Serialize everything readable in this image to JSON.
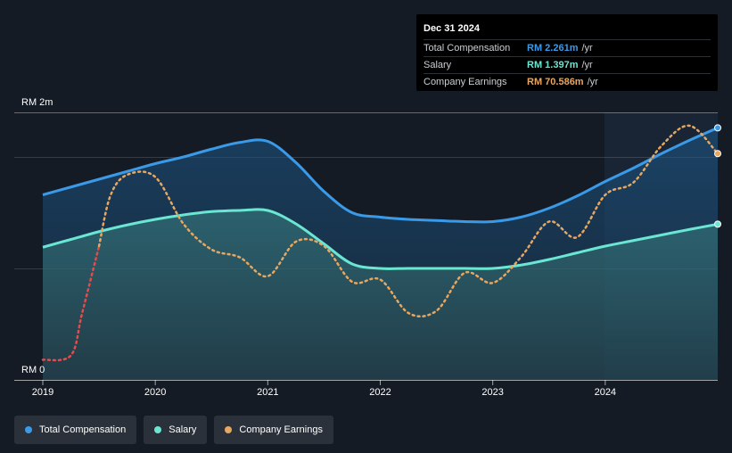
{
  "tooltip": {
    "date": "Dec 31 2024",
    "rows": [
      {
        "label": "Total Compensation",
        "value": "RM 2.261m",
        "unit": "/yr",
        "color": "#3b9ae8"
      },
      {
        "label": "Salary",
        "value": "RM 1.397m",
        "unit": "/yr",
        "color": "#6ae6d2"
      },
      {
        "label": "Company Earnings",
        "value": "RM 70.586m",
        "unit": "/yr",
        "color": "#e8a761"
      }
    ]
  },
  "legend": [
    {
      "label": "Total Compensation",
      "color": "#3b9ae8"
    },
    {
      "label": "Salary",
      "color": "#6ae6d2"
    },
    {
      "label": "Company Earnings",
      "color": "#e8a761"
    }
  ],
  "colors": {
    "background": "#151b24",
    "total": "#3b9ae8",
    "salary": "#6ae6d2",
    "earnings": "#e8a761",
    "earnings_negative": "#e64b4b",
    "forecast_band": "#1b2a3a"
  },
  "chart_data": {
    "type": "area",
    "title": "",
    "xlabel": "",
    "ylabel": "",
    "y_tick_labels": [
      "RM 0",
      "RM 2m"
    ],
    "x_tick_labels": [
      "2019",
      "2020",
      "2021",
      "2022",
      "2023",
      "2024"
    ],
    "x_ticks": [
      2019.0,
      2020.0,
      2021.0,
      2022.0,
      2023.0,
      2024.0
    ],
    "xlim": [
      2019.0,
      2025.0
    ],
    "ylim": [
      0,
      2.4
    ],
    "grid": true,
    "legend_position": "bottom-left",
    "series": [
      {
        "name": "Total Compensation",
        "x": [
          2019.0,
          2019.25,
          2019.5,
          2019.75,
          2020.0,
          2020.25,
          2020.5,
          2020.75,
          2021.0,
          2021.25,
          2021.5,
          2021.75,
          2022.0,
          2022.25,
          2022.5,
          2022.75,
          2023.0,
          2023.25,
          2023.5,
          2023.75,
          2024.0,
          2024.25,
          2024.5,
          2024.75,
          2025.0
        ],
        "values": [
          1.66,
          1.73,
          1.8,
          1.87,
          1.94,
          2.0,
          2.07,
          2.13,
          2.14,
          1.95,
          1.69,
          1.5,
          1.46,
          1.44,
          1.43,
          1.42,
          1.42,
          1.46,
          1.54,
          1.65,
          1.78,
          1.9,
          2.03,
          2.15,
          2.261
        ]
      },
      {
        "name": "Salary",
        "x": [
          2019.0,
          2019.25,
          2019.5,
          2019.75,
          2020.0,
          2020.25,
          2020.5,
          2020.75,
          2021.0,
          2021.25,
          2021.5,
          2021.75,
          2022.0,
          2022.25,
          2022.5,
          2022.75,
          2023.0,
          2023.25,
          2023.5,
          2023.75,
          2024.0,
          2024.25,
          2024.5,
          2024.75,
          2025.0
        ],
        "values": [
          1.19,
          1.26,
          1.33,
          1.39,
          1.44,
          1.48,
          1.51,
          1.52,
          1.52,
          1.4,
          1.22,
          1.04,
          1.0,
          1.0,
          1.0,
          1.0,
          1.0,
          1.03,
          1.08,
          1.14,
          1.2,
          1.25,
          1.3,
          1.35,
          1.397
        ]
      },
      {
        "name": "Company Earnings",
        "x": [
          2019.0,
          2019.25,
          2019.35,
          2019.5,
          2019.6,
          2019.75,
          2020.0,
          2020.25,
          2020.5,
          2020.75,
          2021.0,
          2021.25,
          2021.5,
          2021.75,
          2022.0,
          2022.25,
          2022.5,
          2022.75,
          2023.0,
          2023.25,
          2023.5,
          2023.75,
          2024.0,
          2024.25,
          2024.5,
          2024.75,
          2025.0
        ],
        "values": [
          0.18,
          0.22,
          0.6,
          1.2,
          1.65,
          1.84,
          1.82,
          1.4,
          1.17,
          1.1,
          0.93,
          1.24,
          1.2,
          0.88,
          0.9,
          0.6,
          0.62,
          0.96,
          0.87,
          1.1,
          1.42,
          1.28,
          1.66,
          1.77,
          2.1,
          2.28,
          2.03
        ]
      }
    ]
  }
}
